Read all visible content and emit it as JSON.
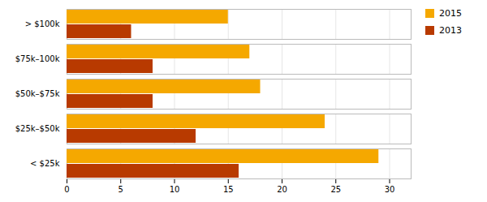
{
  "chart_data": {
    "type": "bar",
    "orientation": "horizontal",
    "categories": [
      "> $100k",
      "$75k–100k",
      "$50k–$75k",
      "$25k–$50k",
      "< $25k"
    ],
    "series": [
      {
        "name": "2015",
        "color": "#F5A800",
        "values": [
          15,
          17,
          18,
          24,
          29
        ]
      },
      {
        "name": "2013",
        "color": "#B83A00",
        "values": [
          6,
          8,
          8,
          12,
          16
        ]
      }
    ],
    "xlim": [
      0,
      32
    ],
    "xticks": [
      0,
      5,
      10,
      15,
      20,
      25,
      30
    ],
    "grid": true,
    "legend": "upper right"
  }
}
